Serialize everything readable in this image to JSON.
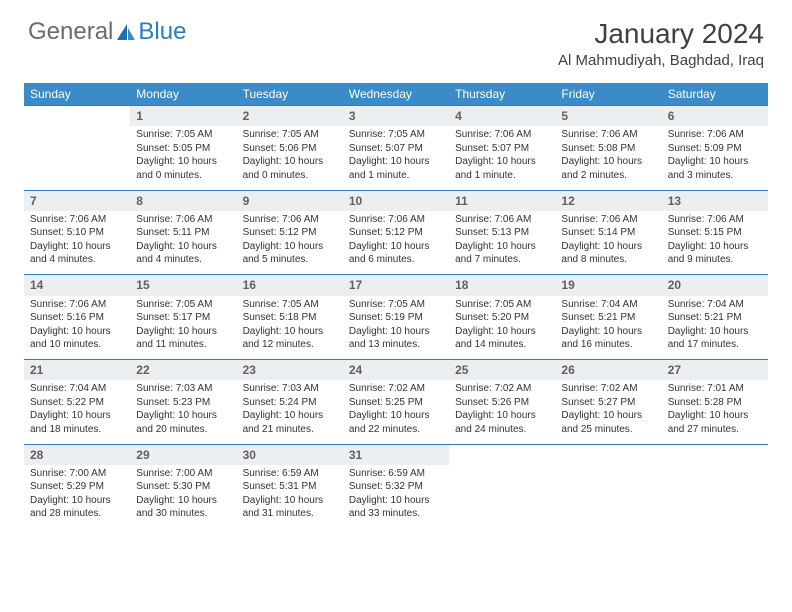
{
  "logo": {
    "part1": "General",
    "part2": "Blue"
  },
  "title": "January 2024",
  "location": "Al Mahmudiyah, Baghdad, Iraq",
  "colors": {
    "header_bg": "#3b8bc8",
    "header_text": "#ffffff",
    "daynum_bg": "#eceff1",
    "border": "#2b7cc0",
    "logo_gray": "#6b6b6b",
    "logo_blue": "#2b7cc0",
    "body_text": "#333333"
  },
  "day_headers": [
    "Sunday",
    "Monday",
    "Tuesday",
    "Wednesday",
    "Thursday",
    "Friday",
    "Saturday"
  ],
  "weeks": [
    [
      {
        "n": "",
        "sr": "",
        "ss": "",
        "dl": ""
      },
      {
        "n": "1",
        "sr": "7:05 AM",
        "ss": "5:05 PM",
        "dl": "10 hours and 0 minutes."
      },
      {
        "n": "2",
        "sr": "7:05 AM",
        "ss": "5:06 PM",
        "dl": "10 hours and 0 minutes."
      },
      {
        "n": "3",
        "sr": "7:05 AM",
        "ss": "5:07 PM",
        "dl": "10 hours and 1 minute."
      },
      {
        "n": "4",
        "sr": "7:06 AM",
        "ss": "5:07 PM",
        "dl": "10 hours and 1 minute."
      },
      {
        "n": "5",
        "sr": "7:06 AM",
        "ss": "5:08 PM",
        "dl": "10 hours and 2 minutes."
      },
      {
        "n": "6",
        "sr": "7:06 AM",
        "ss": "5:09 PM",
        "dl": "10 hours and 3 minutes."
      }
    ],
    [
      {
        "n": "7",
        "sr": "7:06 AM",
        "ss": "5:10 PM",
        "dl": "10 hours and 4 minutes."
      },
      {
        "n": "8",
        "sr": "7:06 AM",
        "ss": "5:11 PM",
        "dl": "10 hours and 4 minutes."
      },
      {
        "n": "9",
        "sr": "7:06 AM",
        "ss": "5:12 PM",
        "dl": "10 hours and 5 minutes."
      },
      {
        "n": "10",
        "sr": "7:06 AM",
        "ss": "5:12 PM",
        "dl": "10 hours and 6 minutes."
      },
      {
        "n": "11",
        "sr": "7:06 AM",
        "ss": "5:13 PM",
        "dl": "10 hours and 7 minutes."
      },
      {
        "n": "12",
        "sr": "7:06 AM",
        "ss": "5:14 PM",
        "dl": "10 hours and 8 minutes."
      },
      {
        "n": "13",
        "sr": "7:06 AM",
        "ss": "5:15 PM",
        "dl": "10 hours and 9 minutes."
      }
    ],
    [
      {
        "n": "14",
        "sr": "7:06 AM",
        "ss": "5:16 PM",
        "dl": "10 hours and 10 minutes."
      },
      {
        "n": "15",
        "sr": "7:05 AM",
        "ss": "5:17 PM",
        "dl": "10 hours and 11 minutes."
      },
      {
        "n": "16",
        "sr": "7:05 AM",
        "ss": "5:18 PM",
        "dl": "10 hours and 12 minutes."
      },
      {
        "n": "17",
        "sr": "7:05 AM",
        "ss": "5:19 PM",
        "dl": "10 hours and 13 minutes."
      },
      {
        "n": "18",
        "sr": "7:05 AM",
        "ss": "5:20 PM",
        "dl": "10 hours and 14 minutes."
      },
      {
        "n": "19",
        "sr": "7:04 AM",
        "ss": "5:21 PM",
        "dl": "10 hours and 16 minutes."
      },
      {
        "n": "20",
        "sr": "7:04 AM",
        "ss": "5:21 PM",
        "dl": "10 hours and 17 minutes."
      }
    ],
    [
      {
        "n": "21",
        "sr": "7:04 AM",
        "ss": "5:22 PM",
        "dl": "10 hours and 18 minutes."
      },
      {
        "n": "22",
        "sr": "7:03 AM",
        "ss": "5:23 PM",
        "dl": "10 hours and 20 minutes."
      },
      {
        "n": "23",
        "sr": "7:03 AM",
        "ss": "5:24 PM",
        "dl": "10 hours and 21 minutes."
      },
      {
        "n": "24",
        "sr": "7:02 AM",
        "ss": "5:25 PM",
        "dl": "10 hours and 22 minutes."
      },
      {
        "n": "25",
        "sr": "7:02 AM",
        "ss": "5:26 PM",
        "dl": "10 hours and 24 minutes."
      },
      {
        "n": "26",
        "sr": "7:02 AM",
        "ss": "5:27 PM",
        "dl": "10 hours and 25 minutes."
      },
      {
        "n": "27",
        "sr": "7:01 AM",
        "ss": "5:28 PM",
        "dl": "10 hours and 27 minutes."
      }
    ],
    [
      {
        "n": "28",
        "sr": "7:00 AM",
        "ss": "5:29 PM",
        "dl": "10 hours and 28 minutes."
      },
      {
        "n": "29",
        "sr": "7:00 AM",
        "ss": "5:30 PM",
        "dl": "10 hours and 30 minutes."
      },
      {
        "n": "30",
        "sr": "6:59 AM",
        "ss": "5:31 PM",
        "dl": "10 hours and 31 minutes."
      },
      {
        "n": "31",
        "sr": "6:59 AM",
        "ss": "5:32 PM",
        "dl": "10 hours and 33 minutes."
      },
      {
        "n": "",
        "sr": "",
        "ss": "",
        "dl": ""
      },
      {
        "n": "",
        "sr": "",
        "ss": "",
        "dl": ""
      },
      {
        "n": "",
        "sr": "",
        "ss": "",
        "dl": ""
      }
    ]
  ],
  "labels": {
    "sunrise": "Sunrise:",
    "sunset": "Sunset:",
    "daylight": "Daylight:"
  }
}
